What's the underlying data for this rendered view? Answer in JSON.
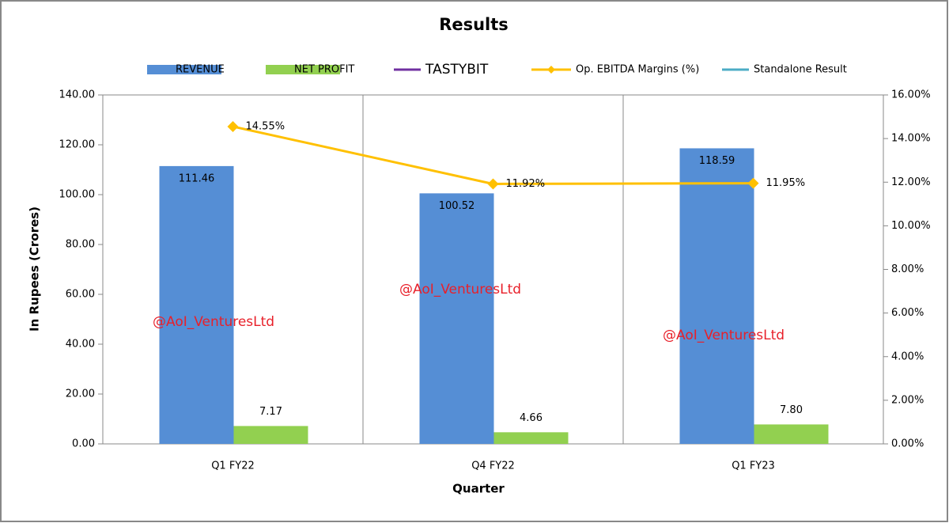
{
  "chart_data": {
    "type": "bar",
    "title": "Results",
    "x_label": "Quarter",
    "y_label": "In Rupees (Crores)",
    "categories": [
      "Q1 FY22",
      "Q4 FY22",
      "Q1 FY23"
    ],
    "series": [
      {
        "name": "REVENUE",
        "type": "bar",
        "color": "#558ed5",
        "values": [
          111.46,
          100.52,
          118.59
        ],
        "value_labels": [
          "111.46",
          "100.52",
          "118.59"
        ]
      },
      {
        "name": "NET PROFIT",
        "type": "bar",
        "color": "#92d050",
        "values": [
          7.17,
          4.66,
          7.8
        ],
        "value_labels": [
          "7.17",
          "4.66",
          "7.80"
        ]
      },
      {
        "name": "TASTYBIT",
        "type": "line",
        "color": "#7030a0",
        "values": [
          null,
          null,
          null
        ]
      },
      {
        "name": "Op. EBITDA Margins (%)",
        "type": "line",
        "marker": "diamond",
        "axis": "y2",
        "color": "#ffc000",
        "values": [
          14.55,
          11.92,
          11.95
        ],
        "value_labels": [
          "14.55%",
          "11.92%",
          "11.95%"
        ]
      },
      {
        "name": "Standalone Result",
        "type": "line",
        "color": "#4bacc6",
        "values": [
          null,
          null,
          null
        ]
      }
    ],
    "ylim": [
      0,
      140
    ],
    "yticks": [
      {
        "value": 0,
        "label": "0.00"
      },
      {
        "value": 20,
        "label": "20.00"
      },
      {
        "value": 40,
        "label": "40.00"
      },
      {
        "value": 60,
        "label": "60.00"
      },
      {
        "value": 80,
        "label": "80.00"
      },
      {
        "value": 100,
        "label": "100.00"
      },
      {
        "value": 120,
        "label": "120.00"
      },
      {
        "value": 140,
        "label": "140.00"
      }
    ],
    "y2lim": [
      0,
      16
    ],
    "y2ticks": [
      {
        "value": 0,
        "label": "0.00%"
      },
      {
        "value": 2,
        "label": "2.00%"
      },
      {
        "value": 4,
        "label": "4.00%"
      },
      {
        "value": 6,
        "label": "6.00%"
      },
      {
        "value": 8,
        "label": "8.00%"
      },
      {
        "value": 10,
        "label": "10.00%"
      },
      {
        "value": 12,
        "label": "12.00%"
      },
      {
        "value": 14,
        "label": "14.00%"
      },
      {
        "value": 16,
        "label": "16.00%"
      }
    ],
    "grid": "x",
    "legend": "top",
    "annotations": [
      "@AoI_VenturesLtd",
      "@AoI_VenturesLtd",
      "@AoI_VenturesLtd"
    ]
  }
}
